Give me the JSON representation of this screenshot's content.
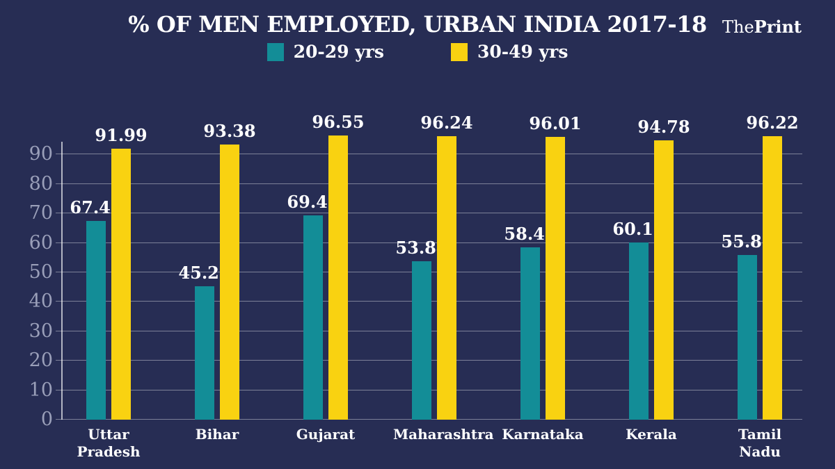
{
  "header": {
    "title": "% OF MEN EMPLOYED, URBAN INDIA 2017-18",
    "logo_the": "The",
    "logo_print": "Print"
  },
  "legend": {
    "items": [
      {
        "label": "20-29 yrs",
        "color": "#138d97"
      },
      {
        "label": "30-49 yrs",
        "color": "#f9d211"
      }
    ]
  },
  "colors": {
    "background": "#272d54",
    "teal": "#138d97",
    "yellow": "#f9d211",
    "grid": "rgba(255,255,255,0.40)",
    "axis": "rgba(255,255,255,0.65)",
    "tick_label": "#9a9fb9",
    "text": "#ffffff"
  },
  "chart_data": {
    "type": "bar",
    "categories": [
      "Uttar Pradesh",
      "Bihar",
      "Gujarat",
      "Maharashtra",
      "Karnataka",
      "Kerala",
      "Tamil Nadu"
    ],
    "series": [
      {
        "name": "20-29 yrs",
        "color": "#138d97",
        "values": [
          67.48,
          45.27,
          69.42,
          53.84,
          58.41,
          60.16,
          55.83
        ]
      },
      {
        "name": "30-49 yrs",
        "color": "#f9d211",
        "values": [
          91.99,
          93.38,
          96.55,
          96.24,
          96.01,
          94.78,
          96.22
        ]
      }
    ],
    "title": "% OF MEN EMPLOYED, URBAN INDIA 2017-18",
    "xlabel": "",
    "ylabel": "",
    "ylim": [
      0,
      100
    ],
    "yticks": [
      0,
      10,
      20,
      30,
      40,
      50,
      60,
      70,
      80,
      90
    ],
    "grid": true,
    "legend_position": "top",
    "value_label_decimals": 2
  }
}
